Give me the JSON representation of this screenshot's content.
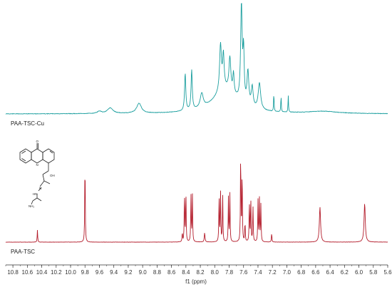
{
  "chart_data": {
    "type": "line",
    "title": "",
    "xlabel": "f1 (ppm)",
    "ylabel": "",
    "x_reversed": true,
    "xlim": [
      10.9,
      5.6
    ],
    "x_ticks": [
      "10.8",
      "10.6",
      "10.4",
      "10.2",
      "10.0",
      "9.8",
      "9.6",
      "9.4",
      "9.2",
      "9.0",
      "8.8",
      "8.6",
      "8.4",
      "8.2",
      "8.0",
      "7.8",
      "7.6",
      "7.4",
      "7.2",
      "7.0",
      "6.8",
      "6.6",
      "6.4",
      "6.2",
      "6.0",
      "5.8",
      "5.6"
    ],
    "grid": false,
    "series": [
      {
        "name": "PAA-TSC-Cu",
        "color": "#1a9e9e",
        "peaks": [
          {
            "ppm": 9.6,
            "height": 0.02,
            "width": 0.07
          },
          {
            "ppm": 9.45,
            "height": 0.05,
            "width": 0.09
          },
          {
            "ppm": 9.05,
            "height": 0.09,
            "width": 0.08
          },
          {
            "ppm": 8.41,
            "height": 0.34,
            "width": 0.02
          },
          {
            "ppm": 8.32,
            "height": 0.36,
            "width": 0.02
          },
          {
            "ppm": 8.18,
            "height": 0.13,
            "width": 0.05
          },
          {
            "ppm": 7.92,
            "height": 0.42,
            "width": 0.03
          },
          {
            "ppm": 7.88,
            "height": 0.3,
            "width": 0.025
          },
          {
            "ppm": 7.79,
            "height": 0.3,
            "width": 0.03
          },
          {
            "ppm": 7.74,
            "height": 0.18,
            "width": 0.02
          },
          {
            "ppm": 7.63,
            "height": 0.88,
            "width": 0.025
          },
          {
            "ppm": 7.6,
            "height": 0.45,
            "width": 0.02
          },
          {
            "ppm": 7.54,
            "height": 0.3,
            "width": 0.03
          },
          {
            "ppm": 7.48,
            "height": 0.18,
            "width": 0.03
          },
          {
            "ppm": 7.38,
            "height": 0.24,
            "width": 0.04
          },
          {
            "ppm": 7.18,
            "height": 0.17,
            "width": 0.008
          },
          {
            "ppm": 7.08,
            "height": 0.15,
            "width": 0.008
          },
          {
            "ppm": 6.98,
            "height": 0.15,
            "width": 0.008
          }
        ],
        "broad": [
          {
            "ppm": 7.85,
            "height": 0.22,
            "width": 0.4
          },
          {
            "ppm": 6.5,
            "height": 0.02,
            "width": 0.5
          }
        ]
      },
      {
        "name": "PAA-TSC",
        "color": "#b31b2a",
        "peaks": [
          {
            "ppm": 10.46,
            "height": 0.13,
            "width": 0.008
          },
          {
            "ppm": 9.8,
            "height": 0.92,
            "width": 0.008
          },
          {
            "ppm": 8.45,
            "height": 0.1,
            "width": 0.008
          },
          {
            "ppm": 8.42,
            "height": 0.55,
            "width": 0.008
          },
          {
            "ppm": 8.4,
            "height": 0.55,
            "width": 0.008
          },
          {
            "ppm": 8.33,
            "height": 0.52,
            "width": 0.008
          },
          {
            "ppm": 8.31,
            "height": 0.52,
            "width": 0.008
          },
          {
            "ppm": 8.14,
            "height": 0.1,
            "width": 0.012
          },
          {
            "ppm": 7.94,
            "height": 0.5,
            "width": 0.008
          },
          {
            "ppm": 7.92,
            "height": 0.58,
            "width": 0.008
          },
          {
            "ppm": 7.89,
            "height": 0.52,
            "width": 0.008
          },
          {
            "ppm": 7.81,
            "height": 0.48,
            "width": 0.008
          },
          {
            "ppm": 7.79,
            "height": 0.52,
            "width": 0.008
          },
          {
            "ppm": 7.64,
            "height": 1.0,
            "width": 0.008
          },
          {
            "ppm": 7.62,
            "height": 0.8,
            "width": 0.008
          },
          {
            "ppm": 7.58,
            "height": 0.22,
            "width": 0.008
          },
          {
            "ppm": 7.52,
            "height": 0.45,
            "width": 0.008
          },
          {
            "ppm": 7.5,
            "height": 0.48,
            "width": 0.008
          },
          {
            "ppm": 7.47,
            "height": 0.4,
            "width": 0.008
          },
          {
            "ppm": 7.4,
            "height": 0.45,
            "width": 0.008
          },
          {
            "ppm": 7.38,
            "height": 0.46,
            "width": 0.008
          },
          {
            "ppm": 7.36,
            "height": 0.4,
            "width": 0.008
          },
          {
            "ppm": 7.21,
            "height": 0.1,
            "width": 0.008
          },
          {
            "ppm": 6.54,
            "height": 0.38,
            "width": 0.02
          },
          {
            "ppm": 5.92,
            "height": 0.42,
            "width": 0.02
          }
        ],
        "broad": []
      }
    ]
  },
  "structure": {
    "labels": [
      "O",
      "N",
      "OH",
      "N",
      "HN",
      "NH₂"
    ]
  }
}
